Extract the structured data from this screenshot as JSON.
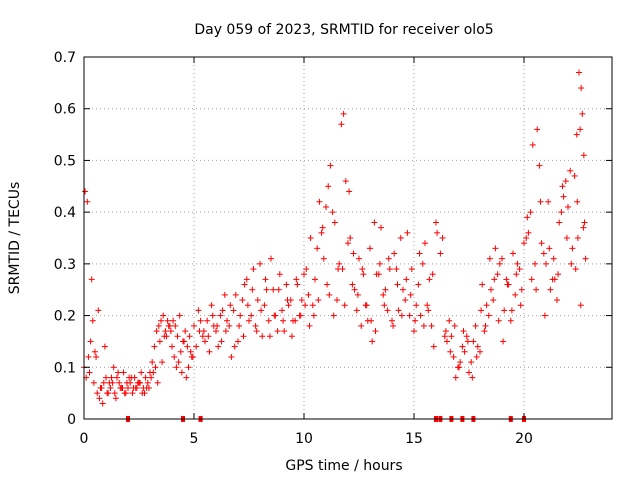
{
  "chart_data": {
    "type": "scatter",
    "title": "Day 059 of 2023, SRMTID for receiver olo5",
    "xlabel": "GPS time / hours",
    "ylabel": "SRMTID / TECUs",
    "xlim": [
      0,
      24
    ],
    "ylim": [
      0,
      0.7
    ],
    "xticks": [
      0,
      5,
      10,
      15,
      20
    ],
    "xtick_labels": [
      "0",
      "5",
      "10",
      "15",
      "20"
    ],
    "yticks": [
      0,
      0.1,
      0.2,
      0.3,
      0.4,
      0.5,
      0.6,
      0.7
    ],
    "ytick_labels": [
      "0",
      "0.1",
      "0.2",
      "0.3",
      "0.4",
      "0.5",
      "0.6",
      "0.7"
    ],
    "grid": true,
    "marker": "+",
    "color": "#ff0000",
    "series": [
      {
        "name": "olo5",
        "x": [
          0.0,
          0.1,
          0.2,
          0.3,
          0.4,
          0.5,
          0.6,
          0.7,
          0.8,
          0.9,
          1.0,
          1.1,
          1.2,
          1.3,
          1.4,
          1.5,
          1.6,
          1.7,
          1.8,
          1.9,
          2.0,
          2.1,
          2.2,
          2.3,
          2.4,
          2.5,
          2.6,
          2.7,
          2.8,
          2.9,
          3.0,
          3.1,
          3.2,
          3.3,
          3.4,
          3.5,
          3.6,
          3.7,
          3.8,
          3.9,
          4.0,
          4.1,
          4.2,
          4.3,
          4.4,
          4.5,
          4.6,
          4.7,
          4.8,
          4.9,
          5.0,
          5.2,
          5.4,
          5.6,
          5.8,
          6.0,
          6.2,
          6.4,
          6.6,
          6.8,
          7.0,
          7.2,
          7.4,
          7.6,
          7.8,
          8.0,
          8.2,
          8.4,
          8.6,
          8.8,
          9.0,
          9.2,
          9.4,
          9.6,
          9.8,
          10.0,
          10.2,
          10.4,
          10.6,
          10.8,
          11.0,
          11.1,
          11.2,
          11.4,
          11.6,
          11.7,
          11.8,
          12.0,
          12.2,
          12.4,
          12.6,
          12.8,
          13.0,
          13.2,
          13.4,
          13.6,
          13.8,
          14.0,
          14.2,
          14.4,
          14.6,
          14.8,
          15.0,
          15.2,
          15.4,
          15.6,
          15.8,
          16.0,
          16.2,
          16.4,
          16.6,
          16.8,
          17.0,
          17.2,
          17.4,
          17.6,
          17.8,
          18.0,
          18.2,
          18.4,
          18.6,
          18.8,
          19.0,
          19.2,
          19.4,
          19.6,
          19.8,
          20.0,
          20.2,
          20.3,
          20.4,
          20.6,
          20.8,
          21.0,
          21.2,
          21.4,
          21.6,
          21.8,
          22.0,
          22.2,
          22.3,
          22.4,
          22.5,
          22.6,
          22.7,
          22.8,
          0.05,
          0.25,
          0.45,
          0.65,
          0.85,
          1.05,
          1.25,
          1.45,
          1.65,
          1.85,
          2.05,
          2.25,
          2.45,
          2.65,
          2.85,
          3.05,
          3.25,
          3.45,
          3.65,
          3.85,
          4.05,
          4.25,
          4.45,
          4.65,
          4.85,
          5.1,
          5.3,
          5.5,
          5.7,
          5.9,
          6.1,
          6.3,
          6.5,
          6.7,
          6.9,
          7.1,
          7.3,
          7.5,
          7.7,
          7.9,
          8.1,
          8.3,
          8.5,
          8.7,
          8.9,
          9.1,
          9.3,
          9.5,
          9.7,
          9.9,
          10.1,
          10.3,
          10.5,
          10.7,
          10.9,
          11.05,
          11.3,
          11.5,
          11.75,
          11.9,
          12.1,
          12.3,
          12.5,
          12.7,
          12.9,
          13.1,
          13.3,
          13.5,
          13.7,
          13.9,
          14.1,
          14.3,
          14.5,
          14.7,
          14.9,
          15.1,
          15.3,
          15.5,
          15.7,
          15.9,
          16.3,
          16.5,
          16.7,
          16.9,
          17.1,
          17.3,
          17.5,
          17.7,
          17.9,
          18.1,
          18.3,
          18.5,
          18.7,
          18.9,
          19.1,
          19.3,
          19.5,
          19.7,
          19.9,
          20.1,
          20.5,
          20.7,
          20.9,
          21.1,
          21.3,
          21.5,
          21.7,
          21.9,
          22.1,
          22.35,
          22.45,
          22.55,
          22.65,
          22.75,
          0.15,
          0.35,
          0.55,
          0.75,
          0.95,
          1.15,
          1.35,
          1.55,
          1.75,
          1.95,
          2.15,
          2.35,
          2.55,
          2.75,
          2.95,
          3.15,
          3.35,
          3.55,
          3.75,
          3.95,
          4.15,
          4.35,
          4.55,
          4.75,
          4.95,
          5.25,
          5.45,
          5.65,
          5.85,
          6.05,
          6.25,
          6.45,
          6.65,
          6.85,
          7.05,
          7.25,
          7.45,
          7.65,
          7.85,
          8.05,
          8.25,
          8.45,
          8.65,
          8.85,
          9.05,
          9.25,
          9.45,
          9.65,
          9.85,
          10.05,
          10.25,
          10.45,
          10.65,
          10.85,
          11.15,
          11.35,
          11.55,
          11.85,
          12.05,
          12.25,
          12.45,
          12.65,
          12.85,
          13.05,
          13.25,
          13.45,
          13.65,
          13.85,
          14.05,
          14.25,
          14.45,
          14.65,
          14.85,
          15.05,
          15.25,
          15.45,
          15.65,
          15.85,
          16.05,
          16.45,
          16.65,
          16.85,
          17.05,
          17.25,
          17.45,
          17.65,
          17.85,
          18.05,
          18.25,
          18.45,
          18.65,
          18.85,
          19.05,
          19.25,
          19.45,
          19.65,
          19.85,
          20.15,
          20.35,
          20.55,
          20.75,
          20.95,
          21.15,
          21.35,
          21.55,
          21.75,
          21.95,
          22.15,
          22.42,
          22.58,
          22.72
        ],
        "y": [
          0.1,
          0.08,
          0.12,
          0.15,
          0.19,
          0.13,
          0.05,
          0.04,
          0.06,
          0.07,
          0.08,
          0.05,
          0.06,
          0.07,
          0.05,
          0.08,
          0.07,
          0.06,
          0.09,
          0.05,
          0.06,
          0.07,
          0.05,
          0.08,
          0.06,
          0.07,
          0.09,
          0.06,
          0.08,
          0.07,
          0.09,
          0.11,
          0.14,
          0.17,
          0.18,
          0.19,
          0.2,
          0.17,
          0.19,
          0.18,
          0.14,
          0.12,
          0.1,
          0.11,
          0.13,
          0.15,
          0.17,
          0.14,
          0.16,
          0.12,
          0.18,
          0.21,
          0.16,
          0.19,
          0.22,
          0.17,
          0.2,
          0.24,
          0.18,
          0.21,
          0.15,
          0.23,
          0.27,
          0.2,
          0.18,
          0.3,
          0.22,
          0.19,
          0.25,
          0.17,
          0.21,
          0.26,
          0.23,
          0.19,
          0.2,
          0.28,
          0.24,
          0.22,
          0.33,
          0.36,
          0.41,
          0.45,
          0.49,
          0.38,
          0.3,
          0.57,
          0.59,
          0.34,
          0.26,
          0.21,
          0.18,
          0.22,
          0.33,
          0.38,
          0.28,
          0.24,
          0.21,
          0.19,
          0.29,
          0.35,
          0.23,
          0.2,
          0.17,
          0.26,
          0.3,
          0.22,
          0.18,
          0.38,
          0.32,
          0.16,
          0.19,
          0.12,
          0.1,
          0.14,
          0.16,
          0.11,
          0.18,
          0.13,
          0.17,
          0.2,
          0.23,
          0.28,
          0.31,
          0.27,
          0.19,
          0.24,
          0.29,
          0.34,
          0.36,
          0.4,
          0.53,
          0.56,
          0.34,
          0.3,
          0.25,
          0.27,
          0.38,
          0.43,
          0.41,
          0.33,
          0.47,
          0.55,
          0.67,
          0.64,
          0.37,
          0.31,
          0.44,
          0.09,
          0.07,
          0.21,
          0.03,
          0.05,
          0.08,
          0.04,
          0.06,
          0.05,
          0.08,
          0.06,
          0.07,
          0.05,
          0.06,
          0.08,
          0.1,
          0.15,
          0.16,
          0.18,
          0.19,
          0.16,
          0.09,
          0.08,
          0.13,
          0.14,
          0.19,
          0.15,
          0.13,
          0.18,
          0.14,
          0.21,
          0.19,
          0.12,
          0.24,
          0.2,
          0.26,
          0.19,
          0.29,
          0.23,
          0.16,
          0.25,
          0.31,
          0.2,
          0.28,
          0.17,
          0.22,
          0.19,
          0.26,
          0.23,
          0.29,
          0.35,
          0.27,
          0.42,
          0.31,
          0.26,
          0.4,
          0.23,
          0.29,
          0.46,
          0.35,
          0.25,
          0.31,
          0.28,
          0.19,
          0.15,
          0.28,
          0.37,
          0.25,
          0.29,
          0.32,
          0.21,
          0.25,
          0.36,
          0.29,
          0.22,
          0.2,
          0.34,
          0.27,
          0.14,
          0.35,
          0.15,
          0.16,
          0.08,
          0.11,
          0.13,
          0.09,
          0.15,
          0.14,
          0.26,
          0.22,
          0.25,
          0.33,
          0.3,
          0.21,
          0.26,
          0.32,
          0.3,
          0.25,
          0.35,
          0.3,
          0.49,
          0.32,
          0.42,
          0.27,
          0.23,
          0.4,
          0.46,
          0.48,
          0.29,
          0.35,
          0.56,
          0.59,
          0.38,
          0.42,
          0.27,
          0.12,
          0.06,
          0.14,
          0.07,
          0.1,
          0.09,
          0.06,
          0.07,
          0.08,
          0.06,
          0.07,
          0.05,
          0.06,
          0.09,
          0.07,
          0.11,
          0.16,
          0.17,
          0.18,
          0.2,
          0.15,
          0.1,
          0.12,
          0.17,
          0.17,
          0.16,
          0.2,
          0.18,
          0.15,
          0.17,
          0.22,
          0.14,
          0.18,
          0.16,
          0.22,
          0.25,
          0.17,
          0.21,
          0.27,
          0.16,
          0.2,
          0.25,
          0.19,
          0.23,
          0.16,
          0.27,
          0.2,
          0.22,
          0.18,
          0.2,
          0.23,
          0.37,
          0.24,
          0.2,
          0.29,
          0.22,
          0.44,
          0.32,
          0.24,
          0.29,
          0.22,
          0.19,
          0.17,
          0.3,
          0.22,
          0.31,
          0.18,
          0.26,
          0.2,
          0.27,
          0.24,
          0.19,
          0.32,
          0.18,
          0.21,
          0.28,
          0.36,
          0.17,
          0.13,
          0.18,
          0.1,
          0.17,
          0.15,
          0.08,
          0.12,
          0.21,
          0.18,
          0.31,
          0.27,
          0.19,
          0.15,
          0.26,
          0.21,
          0.28,
          0.22,
          0.39,
          0.27,
          0.25,
          0.42,
          0.2,
          0.33,
          0.31,
          0.28,
          0.45,
          0.35,
          0.3,
          0.42,
          0.22,
          0.51
        ]
      }
    ],
    "zero_markers_x": [
      2.0,
      4.5,
      5.3,
      16.0,
      16.2,
      16.7,
      17.2,
      17.7,
      19.4,
      20.0
    ]
  }
}
